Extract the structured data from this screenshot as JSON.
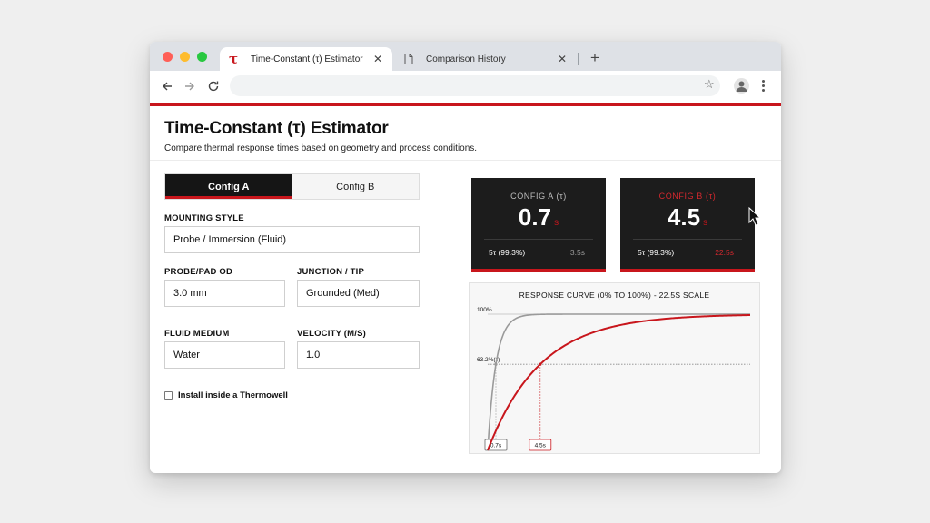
{
  "browser": {
    "tabs": [
      {
        "title": "Time-Constant (τ) Estimator",
        "icon": "tau-logo-icon",
        "active": true
      },
      {
        "title": "Comparison History",
        "icon": "document-icon",
        "active": false
      }
    ],
    "close_glyph": "✕",
    "new_tab_glyph": "+",
    "omnibox_value": ""
  },
  "page": {
    "title": "Time-Constant (τ) Estimator",
    "subtitle": "Compare thermal response times based on geometry and process conditions.",
    "accent_color": "#c8161c"
  },
  "config_tabs": [
    {
      "label": "Config A",
      "active": true
    },
    {
      "label": "Config B",
      "active": false
    }
  ],
  "form": {
    "mounting_label": "MOUNTING STYLE",
    "mounting_value": "Probe / Immersion (Fluid)",
    "od_label": "PROBE/PAD OD",
    "od_value": "3.0 mm",
    "junction_label": "JUNCTION / TIP",
    "junction_value": "Grounded (Med)",
    "medium_label": "FLUID MEDIUM",
    "medium_value": "Water",
    "velocity_label": "VELOCITY (M/S)",
    "velocity_value": "1.0",
    "thermowell_label": "Install inside a Thermowell",
    "thermowell_checked": false
  },
  "cards": [
    {
      "title": "CONFIG A (τ)",
      "value": "0.7",
      "unit": "s",
      "foot_label": "5τ (99.3%)",
      "foot_value": "3.5s"
    },
    {
      "title": "CONFIG B (τ)",
      "value": "4.5",
      "unit": "s",
      "foot_label": "5τ (99.3%)",
      "foot_value": "22.5s"
    }
  ],
  "chart_data": {
    "type": "line",
    "title": "RESPONSE CURVE (0% TO 100%) - 22.5S SCALE",
    "xlim": [
      0,
      22.5
    ],
    "ylim": [
      0,
      100
    ],
    "reference_lines": [
      {
        "y": 100,
        "label": "100%"
      },
      {
        "y": 63.2,
        "label": "63.2%(τ)"
      }
    ],
    "series": [
      {
        "name": "Config A",
        "tau": 0.7,
        "x": [
          0,
          0.35,
          0.7,
          1.4,
          2.1,
          3.5,
          22.5
        ],
        "y": [
          0,
          39.3,
          63.2,
          86.5,
          95.0,
          99.3,
          100
        ],
        "color": "#9a9a9a",
        "marker_label": "0.7s"
      },
      {
        "name": "Config B",
        "tau": 4.5,
        "x": [
          0,
          2.25,
          4.5,
          9.0,
          13.5,
          22.5
        ],
        "y": [
          0,
          39.3,
          63.2,
          86.5,
          95.0,
          99.3
        ],
        "color": "#c8161c",
        "marker_label": "4.5s"
      }
    ]
  }
}
